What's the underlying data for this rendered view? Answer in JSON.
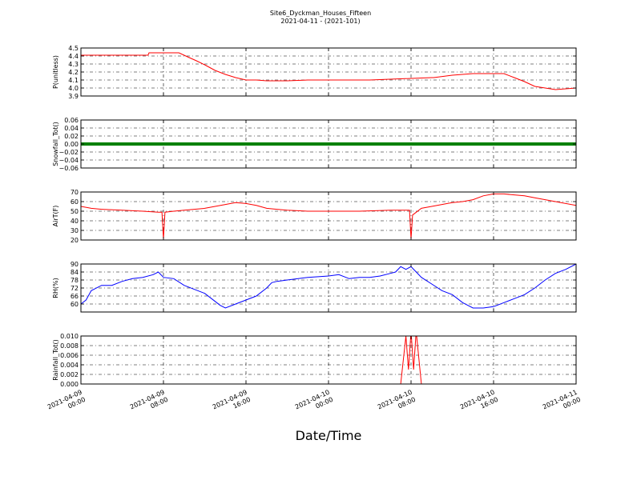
{
  "figure": {
    "title_line1": "Site6_Dyckman_Houses_Fifteen",
    "title_line2": "2021-04-11 - (2021-101)",
    "xlabel": "Date/Time",
    "x_ticks": [
      {
        "line1": "2021-04-09",
        "line2": "00:00"
      },
      {
        "line1": "2021-04-09",
        "line2": "08:00"
      },
      {
        "line1": "2021-04-09",
        "line2": "16:00"
      },
      {
        "line1": "2021-04-10",
        "line2": "00:00"
      },
      {
        "line1": "2021-04-10",
        "line2": "08:00"
      },
      {
        "line1": "2021-04-10",
        "line2": "16:00"
      },
      {
        "line1": "2021-04-11",
        "line2": "00:00"
      }
    ]
  },
  "chart_data": [
    {
      "type": "line",
      "ylabel": "P(unitless)",
      "ylim": [
        3.9,
        4.5
      ],
      "yticks": [
        3.9,
        4.0,
        4.1,
        4.2,
        4.3,
        4.4,
        4.5
      ],
      "ytick_labels": [
        "3.9",
        "4.0",
        "4.1",
        "4.2",
        "4.3",
        "4.4",
        "4.5"
      ],
      "xlim_hours": [
        0,
        48
      ],
      "grid": true,
      "color": "#ff0000",
      "series": [
        {
          "x": [
            0,
            6.5,
            6.6,
            9.5,
            10.5,
            11.2,
            12,
            13,
            14,
            15,
            16,
            17,
            18,
            20,
            22,
            24,
            28,
            34,
            34.2,
            36,
            38,
            41,
            42,
            43,
            44,
            45,
            46,
            48
          ],
          "y": [
            4.41,
            4.41,
            4.44,
            4.44,
            4.38,
            4.34,
            4.29,
            4.22,
            4.17,
            4.13,
            4.1,
            4.1,
            4.09,
            4.09,
            4.1,
            4.1,
            4.1,
            4.13,
            4.13,
            4.16,
            4.18,
            4.18,
            4.13,
            4.08,
            4.02,
            4.0,
            3.98,
            4.0
          ]
        }
      ]
    },
    {
      "type": "line",
      "ylabel": "Snowfall_Tot()",
      "ylim": [
        -0.06,
        0.06
      ],
      "yticks": [
        -0.06,
        -0.04,
        -0.02,
        0.0,
        0.02,
        0.04,
        0.06
      ],
      "ytick_labels": [
        "−0.06",
        "−0.04",
        "−0.02",
        "0.00",
        "0.02",
        "0.04",
        "0.06"
      ],
      "xlim_hours": [
        0,
        48
      ],
      "grid": true,
      "color": "#008000",
      "series": [
        {
          "x": [
            0,
            48
          ],
          "y": [
            0,
            0
          ]
        }
      ]
    },
    {
      "type": "line",
      "ylabel": "AirT(F)",
      "ylim": [
        20,
        70
      ],
      "yticks": [
        20,
        30,
        40,
        50,
        60,
        70
      ],
      "ytick_labels": [
        "20",
        "30",
        "40",
        "50",
        "60",
        "70"
      ],
      "xlim_hours": [
        0,
        48
      ],
      "grid": true,
      "color": "#ff0000",
      "series": [
        {
          "x": [
            0,
            1,
            2,
            4,
            6,
            7.5,
            7.85,
            8.0,
            8.15,
            9,
            10,
            11,
            12,
            13,
            14,
            15,
            16,
            17,
            18,
            19,
            20,
            22,
            24,
            27,
            30,
            31.6,
            31.85,
            32.0,
            32.15,
            33,
            34,
            35,
            36,
            37,
            38,
            39,
            40,
            41,
            42,
            43,
            44,
            46,
            48
          ],
          "y": [
            55,
            53,
            52,
            51,
            50,
            49,
            49,
            21,
            49,
            50,
            51,
            52,
            53,
            55,
            57,
            59,
            58,
            56,
            53,
            52,
            51,
            50,
            50,
            50,
            51,
            51,
            51,
            21,
            46,
            53,
            55,
            57,
            59,
            60,
            62,
            66,
            68,
            68,
            67,
            66,
            64,
            60,
            56
          ]
        }
      ]
    },
    {
      "type": "line",
      "ylabel": "RH(%)",
      "ylim": [
        54,
        90
      ],
      "yticks": [
        60,
        66,
        72,
        78,
        84,
        90
      ],
      "ytick_labels": [
        "60",
        "66",
        "72",
        "78",
        "84",
        "90"
      ],
      "xlim_hours": [
        0,
        48
      ],
      "grid": true,
      "color": "#0000ff",
      "series": [
        {
          "x": [
            0,
            0.5,
            1,
            2,
            3,
            4,
            5,
            6,
            7,
            7.5,
            8,
            9,
            10,
            11,
            12,
            13,
            13.5,
            14,
            15,
            16,
            17,
            18,
            18.5,
            19,
            20,
            22,
            24,
            25,
            26,
            27,
            28,
            29,
            30,
            30.5,
            31,
            31.5,
            32,
            33,
            34,
            35,
            36,
            37,
            38,
            39,
            40,
            41,
            42,
            43,
            44,
            45,
            46,
            47,
            48
          ],
          "y": [
            60,
            63,
            70,
            74,
            74,
            77,
            79,
            80,
            82,
            84,
            80,
            79,
            74,
            71,
            68,
            62,
            59,
            57,
            60,
            63,
            66,
            72,
            76,
            77,
            78,
            80,
            81,
            82,
            79,
            80,
            80,
            81,
            83,
            84,
            88,
            86,
            88,
            80,
            75,
            70,
            67,
            61,
            57,
            57,
            58,
            61,
            64,
            67,
            72,
            78,
            83,
            86,
            90
          ]
        }
      ]
    },
    {
      "type": "line",
      "ylabel": "Rainfall_Tot()",
      "ylim": [
        0.0,
        0.01
      ],
      "yticks": [
        0.0,
        0.002,
        0.004,
        0.006,
        0.008,
        0.01
      ],
      "ytick_labels": [
        "0.000",
        "0.002",
        "0.004",
        "0.006",
        "0.008",
        "0.010"
      ],
      "xlim_hours": [
        0,
        48
      ],
      "grid": true,
      "color": "#ff0000",
      "series": [
        {
          "x": [
            0,
            31.0,
            31.5,
            31.75,
            32.0,
            32.25,
            32.5,
            33.0,
            48
          ],
          "y": [
            0,
            0,
            0.01,
            0.003,
            0.011,
            0.003,
            0.011,
            0,
            0
          ]
        }
      ]
    }
  ]
}
